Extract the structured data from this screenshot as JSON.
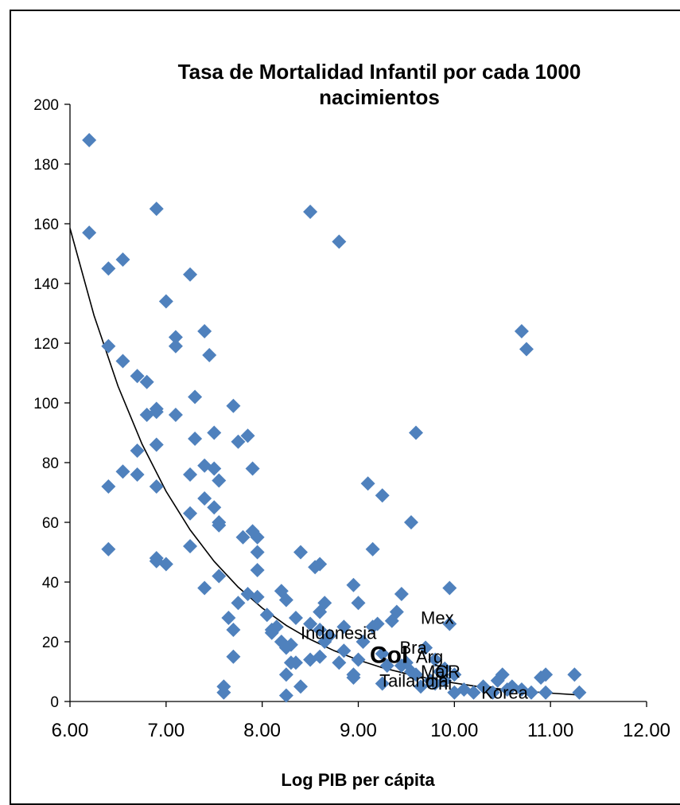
{
  "chart_data": {
    "type": "scatter",
    "title": "Tasa de Mortalidad Infantil por cada 1000 nacimientos",
    "title_lines": [
      "Tasa de Mortalidad Infantil por cada 1000",
      "nacimientos"
    ],
    "xlabel": "Log PIB per cápita",
    "ylabel": "",
    "xlim": [
      6.0,
      12.0
    ],
    "ylim": [
      0,
      200
    ],
    "x_ticks": [
      "6.00",
      "7.00",
      "8.00",
      "9.00",
      "10.00",
      "11.00",
      "12.00"
    ],
    "y_ticks": [
      "0",
      "20",
      "40",
      "60",
      "80",
      "100",
      "120",
      "140",
      "160",
      "180",
      "200"
    ],
    "grid": false,
    "marker_color": "#4F81BD",
    "trend_color": "#000000",
    "trendline": "exponential",
    "series": [
      {
        "points": [
          [
            6.2,
            188
          ],
          [
            6.2,
            157
          ],
          [
            6.4,
            145
          ],
          [
            6.55,
            148
          ],
          [
            6.9,
            165
          ],
          [
            7.25,
            143
          ],
          [
            7.0,
            134
          ],
          [
            6.4,
            119
          ],
          [
            6.55,
            114
          ],
          [
            6.7,
            109
          ],
          [
            6.8,
            107
          ],
          [
            7.1,
            122
          ],
          [
            7.1,
            119
          ],
          [
            7.4,
            124
          ],
          [
            7.45,
            116
          ],
          [
            6.8,
            96
          ],
          [
            6.9,
            97
          ],
          [
            6.9,
            98
          ],
          [
            7.1,
            96
          ],
          [
            7.3,
            102
          ],
          [
            7.7,
            99
          ],
          [
            6.9,
            86
          ],
          [
            7.3,
            88
          ],
          [
            7.5,
            90
          ],
          [
            7.75,
            87
          ],
          [
            7.85,
            89
          ],
          [
            6.7,
            84
          ],
          [
            6.55,
            77
          ],
          [
            6.7,
            76
          ],
          [
            6.4,
            72
          ],
          [
            6.9,
            72
          ],
          [
            7.25,
            76
          ],
          [
            7.4,
            79
          ],
          [
            7.5,
            78
          ],
          [
            7.55,
            74
          ],
          [
            7.9,
            78
          ],
          [
            7.4,
            68
          ],
          [
            7.5,
            65
          ],
          [
            7.25,
            63
          ],
          [
            7.55,
            60
          ],
          [
            7.55,
            59
          ],
          [
            6.4,
            51
          ],
          [
            6.9,
            48
          ],
          [
            6.9,
            47
          ],
          [
            7.0,
            46
          ],
          [
            7.25,
            52
          ],
          [
            7.8,
            55
          ],
          [
            7.9,
            57
          ],
          [
            7.95,
            55
          ],
          [
            7.95,
            50
          ],
          [
            7.4,
            38
          ],
          [
            7.55,
            42
          ],
          [
            7.95,
            44
          ],
          [
            7.85,
            36
          ],
          [
            7.75,
            33
          ],
          [
            7.95,
            35
          ],
          [
            8.2,
            37
          ],
          [
            8.25,
            34
          ],
          [
            8.4,
            50
          ],
          [
            8.55,
            45
          ],
          [
            8.6,
            46
          ],
          [
            8.6,
            30
          ],
          [
            8.65,
            33
          ],
          [
            8.05,
            29
          ],
          [
            8.1,
            24
          ],
          [
            8.15,
            25
          ],
          [
            8.1,
            23
          ],
          [
            8.2,
            20
          ],
          [
            8.25,
            18
          ],
          [
            8.3,
            19
          ],
          [
            8.35,
            28
          ],
          [
            8.5,
            26
          ],
          [
            8.6,
            24
          ],
          [
            8.7,
            22
          ],
          [
            8.85,
            25
          ],
          [
            8.95,
            39
          ],
          [
            9.0,
            33
          ],
          [
            9.1,
            73
          ],
          [
            9.15,
            51
          ],
          [
            9.25,
            69
          ],
          [
            9.35,
            27
          ],
          [
            9.45,
            36
          ],
          [
            9.4,
            30
          ],
          [
            9.55,
            60
          ],
          [
            9.6,
            90
          ],
          [
            9.95,
            38
          ],
          [
            8.5,
            164
          ],
          [
            8.8,
            154
          ],
          [
            10.7,
            124
          ],
          [
            10.75,
            118
          ],
          [
            9.95,
            26
          ],
          [
            7.7,
            24
          ],
          [
            7.65,
            28
          ],
          [
            7.7,
            15
          ],
          [
            7.6,
            5
          ],
          [
            7.6,
            3
          ],
          [
            8.25,
            2
          ],
          [
            8.25,
            9
          ],
          [
            8.3,
            13
          ],
          [
            8.4,
            5
          ],
          [
            8.35,
            13
          ],
          [
            8.5,
            14
          ],
          [
            8.6,
            15
          ],
          [
            8.65,
            20
          ],
          [
            8.8,
            13
          ],
          [
            8.85,
            17
          ],
          [
            8.95,
            9
          ],
          [
            8.95,
            8
          ],
          [
            9.0,
            14
          ],
          [
            9.05,
            20
          ],
          [
            9.15,
            25
          ],
          [
            9.2,
            26
          ],
          [
            9.25,
            16
          ],
          [
            9.25,
            6
          ],
          [
            9.3,
            12
          ],
          [
            9.45,
            12
          ],
          [
            9.5,
            13
          ],
          [
            9.55,
            10
          ],
          [
            9.6,
            9
          ],
          [
            9.65,
            5
          ],
          [
            9.75,
            7
          ],
          [
            9.8,
            6
          ],
          [
            9.85,
            10
          ],
          [
            9.9,
            7
          ],
          [
            10.0,
            3
          ],
          [
            10.1,
            4
          ],
          [
            10.2,
            3
          ],
          [
            10.3,
            5
          ],
          [
            10.4,
            3
          ],
          [
            10.45,
            7
          ],
          [
            10.5,
            9
          ],
          [
            10.55,
            4
          ],
          [
            10.6,
            5
          ],
          [
            10.7,
            4
          ],
          [
            10.8,
            3
          ],
          [
            10.9,
            8
          ],
          [
            10.95,
            9
          ],
          [
            10.95,
            3
          ],
          [
            11.25,
            9
          ],
          [
            11.3,
            3
          ],
          [
            9.7,
            18
          ],
          [
            9.8,
            14
          ],
          [
            9.9,
            11
          ],
          [
            10.0,
            9
          ]
        ]
      }
    ],
    "trend_points": [
      [
        6.0,
        158.5
      ],
      [
        6.25,
        129.3
      ],
      [
        6.5,
        105.6
      ],
      [
        6.75,
        86.2
      ],
      [
        7.0,
        70.4
      ],
      [
        7.25,
        57.5
      ],
      [
        7.5,
        46.9
      ],
      [
        7.75,
        38.3
      ],
      [
        8.0,
        31.3
      ],
      [
        8.25,
        25.5
      ],
      [
        8.5,
        20.8
      ],
      [
        8.75,
        17.0
      ],
      [
        9.0,
        13.9
      ],
      [
        9.25,
        11.3
      ],
      [
        9.5,
        9.3
      ],
      [
        9.75,
        7.6
      ],
      [
        10.0,
        6.2
      ],
      [
        10.25,
        5.0
      ],
      [
        10.5,
        4.1
      ],
      [
        10.75,
        3.4
      ],
      [
        11.0,
        2.8
      ],
      [
        11.3,
        2.2
      ]
    ],
    "annotations": [
      {
        "text": "Mex",
        "x": 9.65,
        "y": 26,
        "big": false
      },
      {
        "text": "Indonesia",
        "x": 8.4,
        "y": 21,
        "big": false
      },
      {
        "text": "Bra",
        "x": 9.43,
        "y": 16,
        "big": false
      },
      {
        "text": "Col",
        "x": 9.12,
        "y": 13,
        "big": true
      },
      {
        "text": "Arg",
        "x": 9.6,
        "y": 13,
        "big": false
      },
      {
        "text": "Mal",
        "x": 9.65,
        "y": 8,
        "big": false
      },
      {
        "text": "CR",
        "x": 9.8,
        "y": 8,
        "big": false
      },
      {
        "text": "Chi",
        "x": 9.7,
        "y": 4,
        "big": false
      },
      {
        "text": "Tailandia",
        "x": 9.22,
        "y": 5,
        "big": false
      },
      {
        "text": "Korea",
        "x": 10.28,
        "y": 1,
        "big": false
      }
    ]
  }
}
